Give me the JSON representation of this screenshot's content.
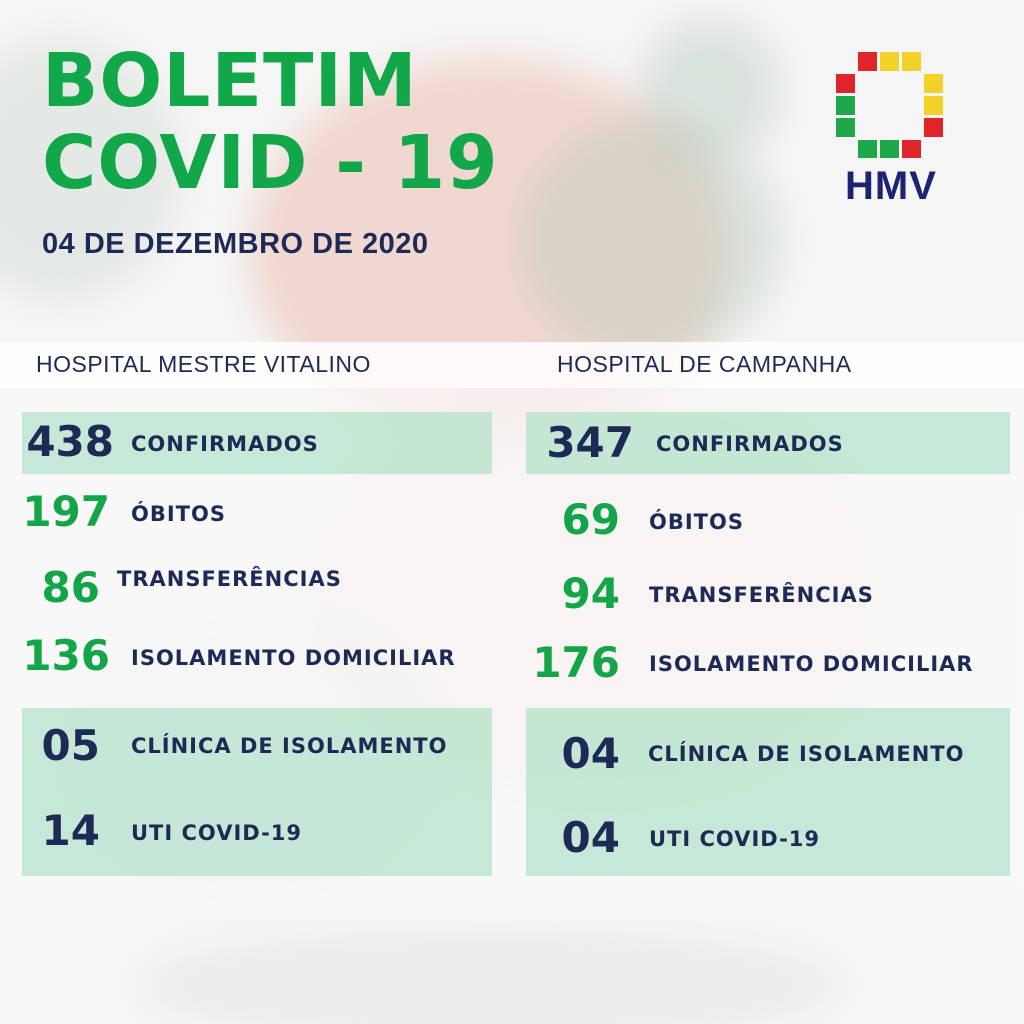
{
  "title": {
    "line1": "BOLETIM",
    "line2": "COVID - 19"
  },
  "date": "04 DE DEZEMBRO DE 2020",
  "logo": {
    "text": "HMV",
    "colors": [
      "#e0252a",
      "#f2d12a",
      "#1fa84a"
    ]
  },
  "hospitals": [
    {
      "name": "HOSPITAL MESTRE VITALINO",
      "stats": [
        {
          "value": "438",
          "label": "CONFIRMADOS"
        },
        {
          "value": "197",
          "label": "ÓBITOS"
        },
        {
          "value": "86",
          "label": "TRANSFERÊNCIAS"
        },
        {
          "value": "136",
          "label": "ISOLAMENTO DOMICILIAR"
        },
        {
          "value": "05",
          "label": "CLÍNICA DE ISOLAMENTO"
        },
        {
          "value": "14",
          "label": "UTI COVID-19"
        }
      ]
    },
    {
      "name": "HOSPITAL DE CAMPANHA",
      "stats": [
        {
          "value": "347",
          "label": "CONFIRMADOS"
        },
        {
          "value": "69",
          "label": "ÓBITOS"
        },
        {
          "value": "94",
          "label": "TRANSFERÊNCIAS"
        },
        {
          "value": "176",
          "label": "ISOLAMENTO DOMICILIAR"
        },
        {
          "value": "04",
          "label": "CLÍNICA DE ISOLAMENTO"
        },
        {
          "value": "04",
          "label": "UTI COVID-19"
        }
      ]
    }
  ]
}
